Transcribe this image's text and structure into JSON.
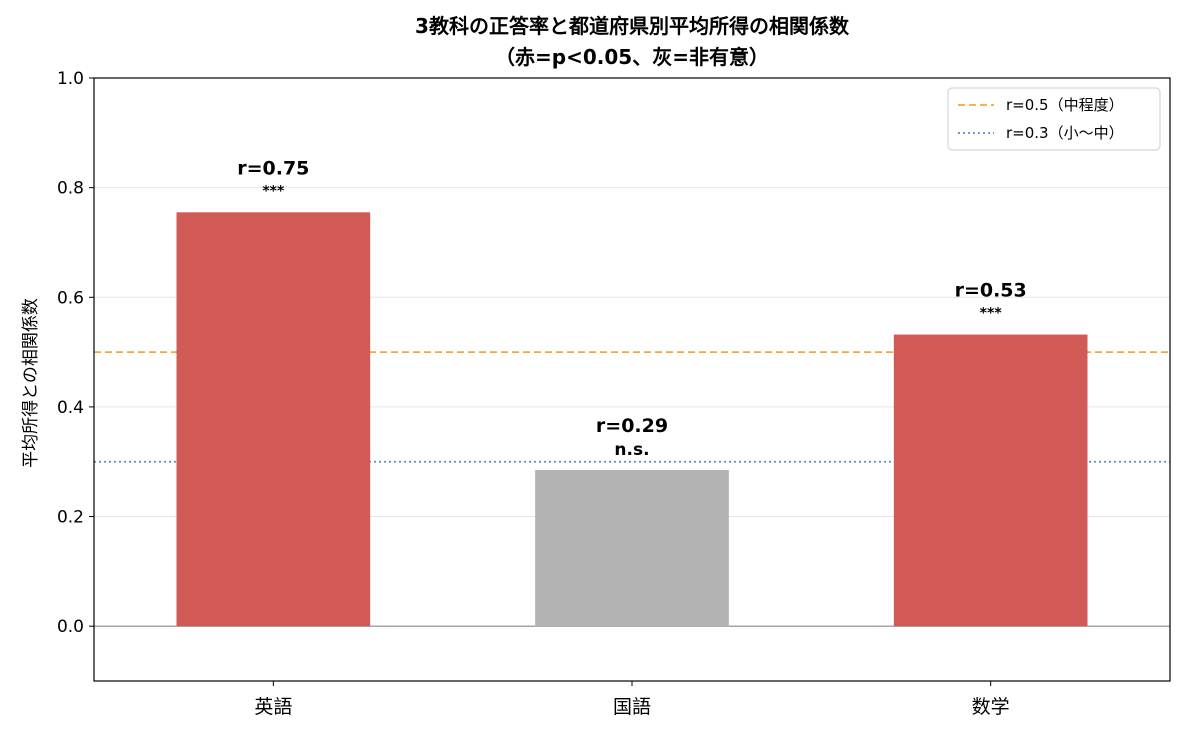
{
  "chart_data": {
    "type": "bar",
    "title_line1": "3教科の正答率と都道府県別平均所得の相関係数",
    "title_line2": "（赤=p<0.05、灰=非有意）",
    "xlabel": "",
    "ylabel": "平均所得との相関係数",
    "categories": [
      "英語",
      "国語",
      "数学"
    ],
    "values": [
      0.755,
      0.285,
      0.532
    ],
    "bar_labels": [
      "r=0.75",
      "r=0.29",
      "r=0.53"
    ],
    "significance": [
      "***",
      "n.s.",
      "***"
    ],
    "bar_colors": [
      "#d15a57",
      "#b3b3b3",
      "#d15a57"
    ],
    "ylim": [
      -0.1,
      1.0
    ],
    "yticks": [
      0.0,
      0.2,
      0.4,
      0.6,
      0.8,
      1.0
    ],
    "ytick_labels": [
      "0.0",
      "0.2",
      "0.4",
      "0.6",
      "0.8",
      "1.0"
    ],
    "grid": true,
    "reference_lines": [
      {
        "value": 0.5,
        "label": "r=0.5（中程度）",
        "color": "#f5a53a",
        "style": "dashed"
      },
      {
        "value": 0.3,
        "label": "r=0.3（小〜中）",
        "color": "#5b8fbf",
        "style": "dotted"
      }
    ],
    "zero_line_color": "#888888",
    "legend_position": "top-right"
  }
}
